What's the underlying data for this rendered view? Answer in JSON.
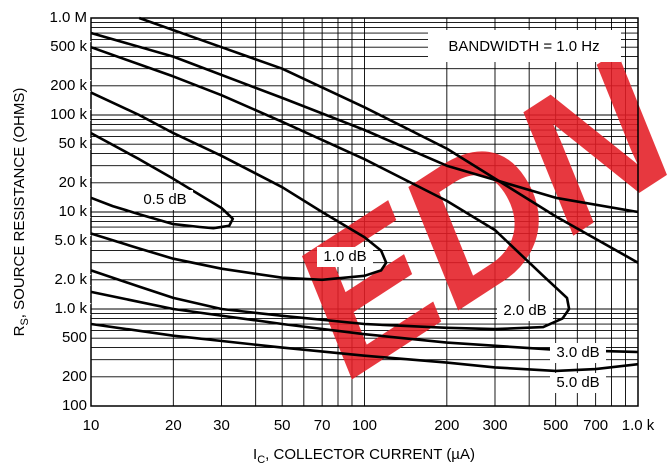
{
  "chart_data": {
    "type": "contour-line",
    "x_label": {
      "main": "I",
      "sub": "C",
      "rest": ", COLLECTOR CURRENT (µA)"
    },
    "y_label": {
      "main": "R",
      "sub": "S",
      "rest": ", SOURCE RESISTANCE (OHMS)"
    },
    "annotation": "BANDWIDTH = 1.0 Hz",
    "watermark": "EDN",
    "log_x": true,
    "log_y": true,
    "grid": true,
    "xlim": [
      10,
      1000
    ],
    "ylim": [
      100,
      1000000
    ],
    "xticks": [
      10,
      20,
      30,
      50,
      70,
      100,
      200,
      300,
      500,
      700,
      {
        "value": 1000,
        "label": "1.0 k"
      }
    ],
    "yticks": [
      100,
      200,
      500,
      {
        "value": 1000,
        "label": "1.0 k"
      },
      {
        "value": 2000,
        "label": "2.0 k"
      },
      {
        "value": 5000,
        "label": "5.0 k"
      },
      {
        "value": 10000,
        "label": "10 k"
      },
      {
        "value": 20000,
        "label": "20 k"
      },
      {
        "value": 50000,
        "label": "50 k"
      },
      {
        "value": 100000,
        "label": "100 k"
      },
      {
        "value": 200000,
        "label": "200 k"
      },
      {
        "value": 500000,
        "label": "500 k"
      },
      {
        "value": 1000000,
        "label": "1.0 M"
      }
    ],
    "xgrid": [
      10,
      20,
      30,
      40,
      50,
      60,
      70,
      80,
      90,
      100,
      200,
      300,
      400,
      500,
      600,
      700,
      800,
      900,
      1000
    ],
    "ygrid": [
      100,
      200,
      300,
      400,
      500,
      600,
      700,
      800,
      900,
      1000,
      2000,
      3000,
      4000,
      5000,
      6000,
      7000,
      8000,
      9000,
      10000,
      20000,
      30000,
      40000,
      50000,
      60000,
      70000,
      80000,
      90000,
      100000,
      200000,
      300000,
      400000,
      500000,
      600000,
      700000,
      800000,
      900000,
      1000000
    ],
    "color": "#000000",
    "series": [
      {
        "name": "0.5 dB",
        "x": [
          10,
          15,
          20,
          25,
          30,
          33,
          32,
          28,
          25,
          20,
          15,
          12,
          10
        ],
        "y": [
          65000,
          35000,
          22000,
          15000,
          11000,
          8500,
          7200,
          6800,
          7000,
          7500,
          9500,
          11500,
          14000
        ]
      },
      {
        "name": "1.0 dB",
        "x": [
          10,
          15,
          20,
          30,
          50,
          70,
          100,
          115,
          120,
          115,
          100,
          70,
          50,
          30,
          20,
          15,
          10
        ],
        "y": [
          170000,
          100000,
          65000,
          38000,
          18000,
          10000,
          5500,
          4000,
          3000,
          2500,
          2200,
          2000,
          2100,
          2600,
          3300,
          4200,
          6000
        ]
      },
      {
        "name": "2.0 dB",
        "x": [
          10,
          20,
          30,
          50,
          100,
          200,
          300,
          450,
          550,
          560,
          530,
          450,
          300,
          200,
          100,
          50,
          30,
          20,
          15,
          10
        ],
        "y": [
          500000,
          250000,
          160000,
          85000,
          35000,
          13000,
          6500,
          2200,
          1300,
          1000,
          800,
          650,
          620,
          640,
          700,
          850,
          1000,
          1300,
          1700,
          2500
        ]
      },
      {
        "name": "3.0 dB",
        "x": [
          10,
          20,
          50,
          100,
          200,
          500,
          1000,
          null,
          10,
          20,
          50,
          100,
          200,
          500,
          1000
        ],
        "y": [
          700000,
          400000,
          150000,
          70000,
          30000,
          14000,
          10000,
          null,
          1500,
          1000,
          700,
          550,
          450,
          380,
          360
        ]
      },
      {
        "name": "5.0 dB",
        "x": [
          15,
          30,
          50,
          100,
          200,
          500,
          1000,
          null,
          10,
          20,
          50,
          100,
          200,
          300,
          500,
          700,
          1000
        ],
        "y": [
          1000000,
          500000,
          300000,
          120000,
          45000,
          9000,
          3000,
          null,
          700,
          530,
          400,
          330,
          280,
          250,
          230,
          240,
          270
        ]
      }
    ]
  }
}
